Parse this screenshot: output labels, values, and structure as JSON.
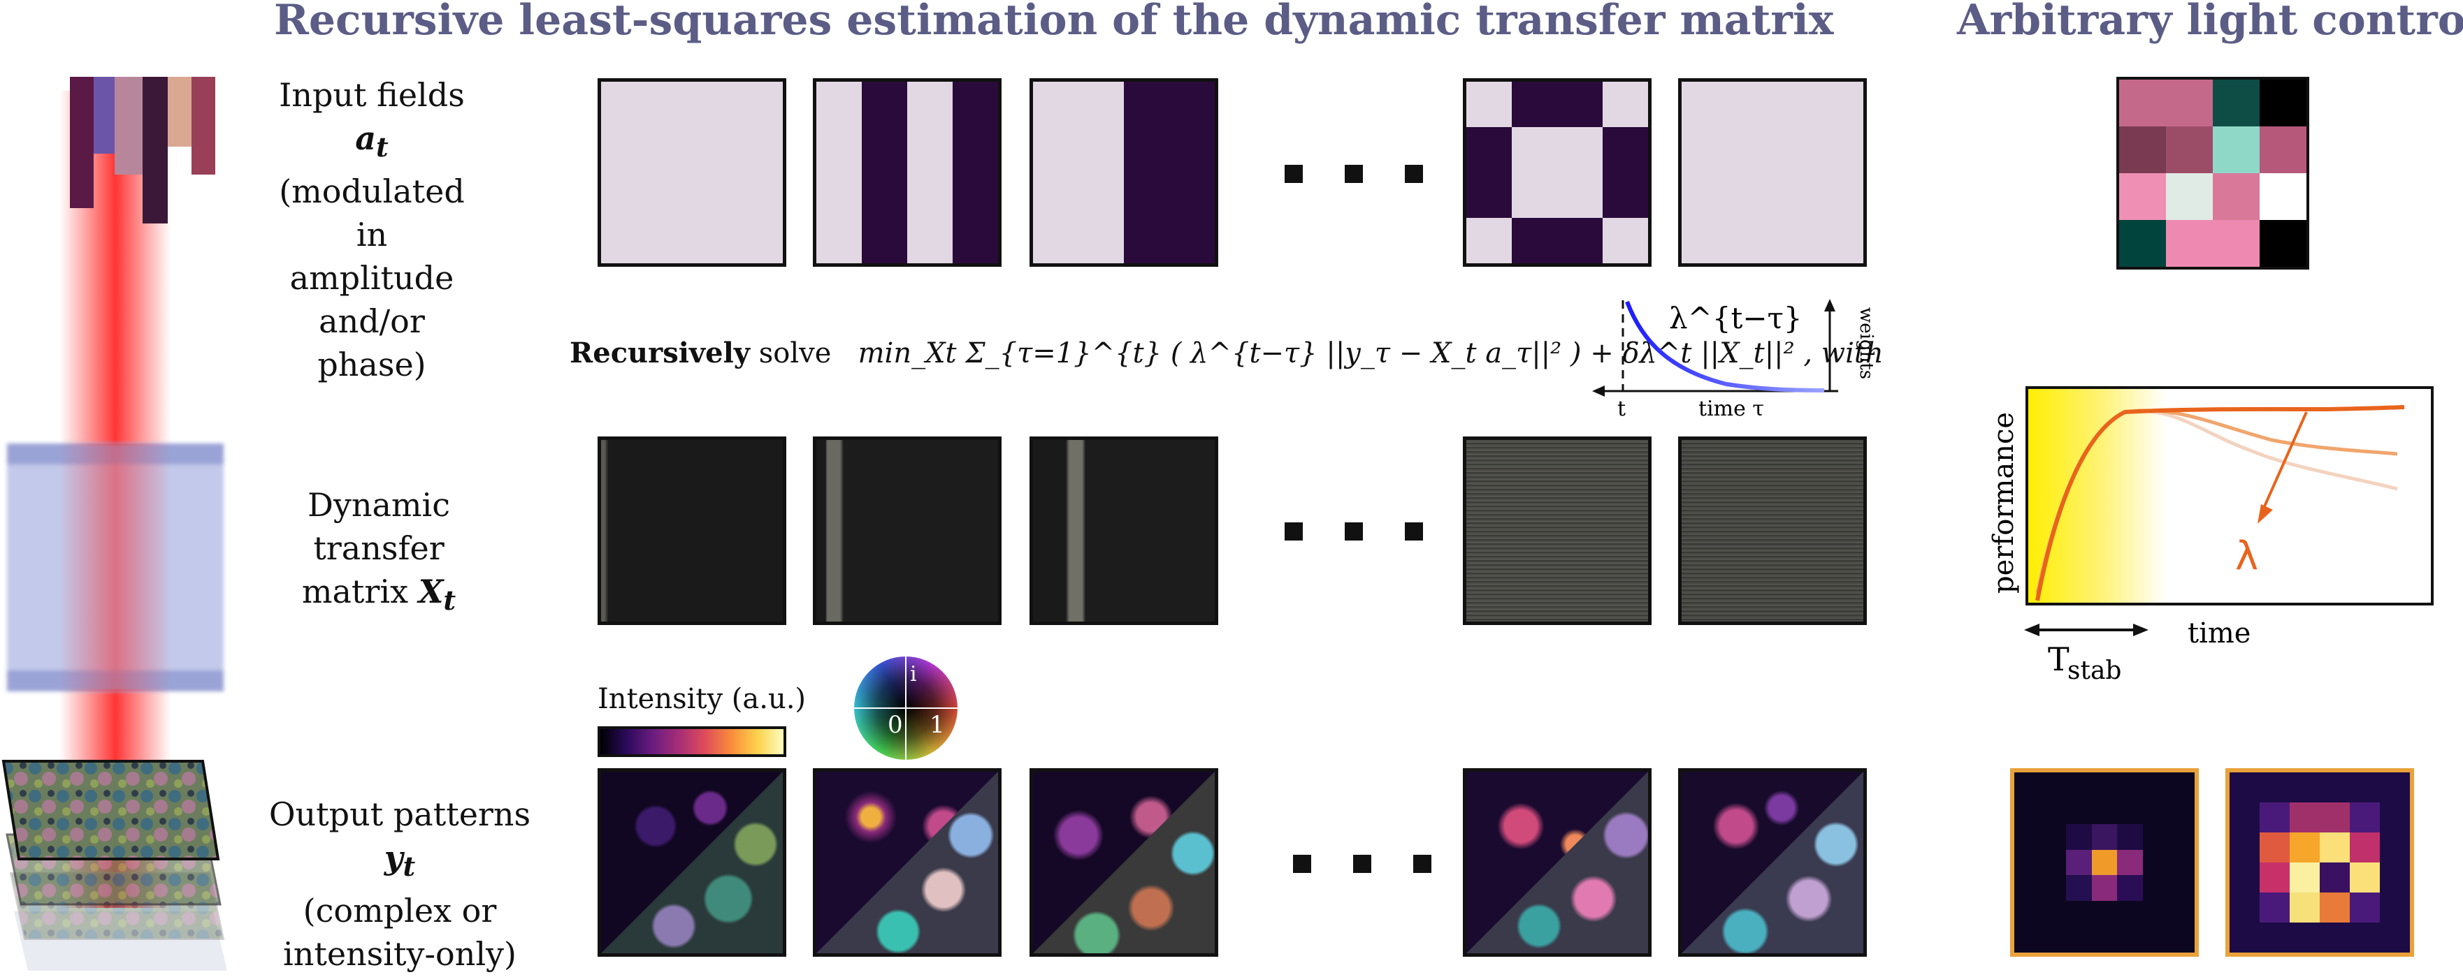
{
  "header": {
    "title_main": "Recursive least-squares estimation of the dynamic transfer matrix",
    "title_right": "Arbitrary light control"
  },
  "rows": {
    "input": {
      "label_l1": "Input fields",
      "symbol": "a",
      "sub": "t",
      "label_rest": [
        "(modulated in",
        "amplitude",
        "and/or phase)"
      ]
    },
    "transfer": {
      "label_l1": "Dynamic transfer",
      "label_l2": "matrix",
      "symbol": "X",
      "sub": "t"
    },
    "output": {
      "label_l1": "Output patterns",
      "symbol": "y",
      "sub": "t",
      "label_rest": [
        "(complex or",
        "intensity-only)"
      ]
    }
  },
  "equation": {
    "bold": "Recursively",
    "text": "solve",
    "formula": "min_Xt Σ_{τ=1}^{t} ( λ^{t−τ} ||y_τ − X_t a_τ||² ) + δλ^t ||X_t||² , with"
  },
  "weights_inset": {
    "lambda_label": "λ^{t−τ}",
    "xlabel": "time τ",
    "t_label": "t",
    "ylabel": "weights"
  },
  "colorbar": {
    "label": "Intensity (a.u.)",
    "wheel_i": "i",
    "wheel_0": "0",
    "wheel_1": "1"
  },
  "performance_plot": {
    "ylabel": "performance",
    "xlabel": "time",
    "lambda": "λ",
    "tstab": "T",
    "tstab_sub": "stab"
  },
  "colors": {
    "header": "#5b5d86",
    "dark_purple": "#2a0a3a",
    "light_lilac": "#e2d8e4",
    "orange": "#e8641c",
    "frame_orange": "#e9a23b"
  },
  "target_grid": [
    [
      "#c5698a",
      "#c5698a",
      "#0e4d46",
      "#000000"
    ],
    [
      "#7a3a52",
      "#9b4d68",
      "#8fd8c8",
      "#b5587a"
    ],
    [
      "#ef8fb4",
      "#e0ebe6",
      "#d97898",
      "#ffffff"
    ],
    [
      "#00443d",
      "#ee8ab2",
      "#ee8ab2",
      "#000000"
    ]
  ]
}
